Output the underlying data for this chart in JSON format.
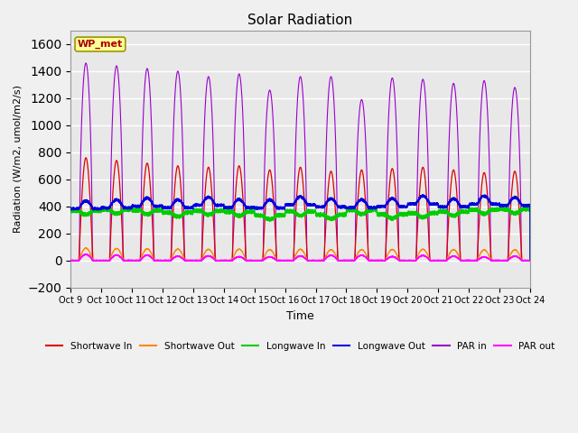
{
  "title": "Solar Radiation",
  "ylabel": "Radiation (W/m2, umol/m2/s)",
  "xlabel": "Time",
  "ylim": [
    -200,
    1700
  ],
  "yticks": [
    -200,
    0,
    200,
    400,
    600,
    800,
    1000,
    1200,
    1400,
    1600
  ],
  "colors": {
    "shortwave_in": "#dd0000",
    "shortwave_out": "#ff8800",
    "longwave_in": "#00cc00",
    "longwave_out": "#0000dd",
    "par_in": "#9900cc",
    "par_out": "#ff00ff"
  },
  "legend_label": "WP_met",
  "num_days": 15,
  "start_day": 9,
  "end_label": "Oct 24",
  "figsize": [
    6.4,
    4.8
  ],
  "dpi": 100
}
